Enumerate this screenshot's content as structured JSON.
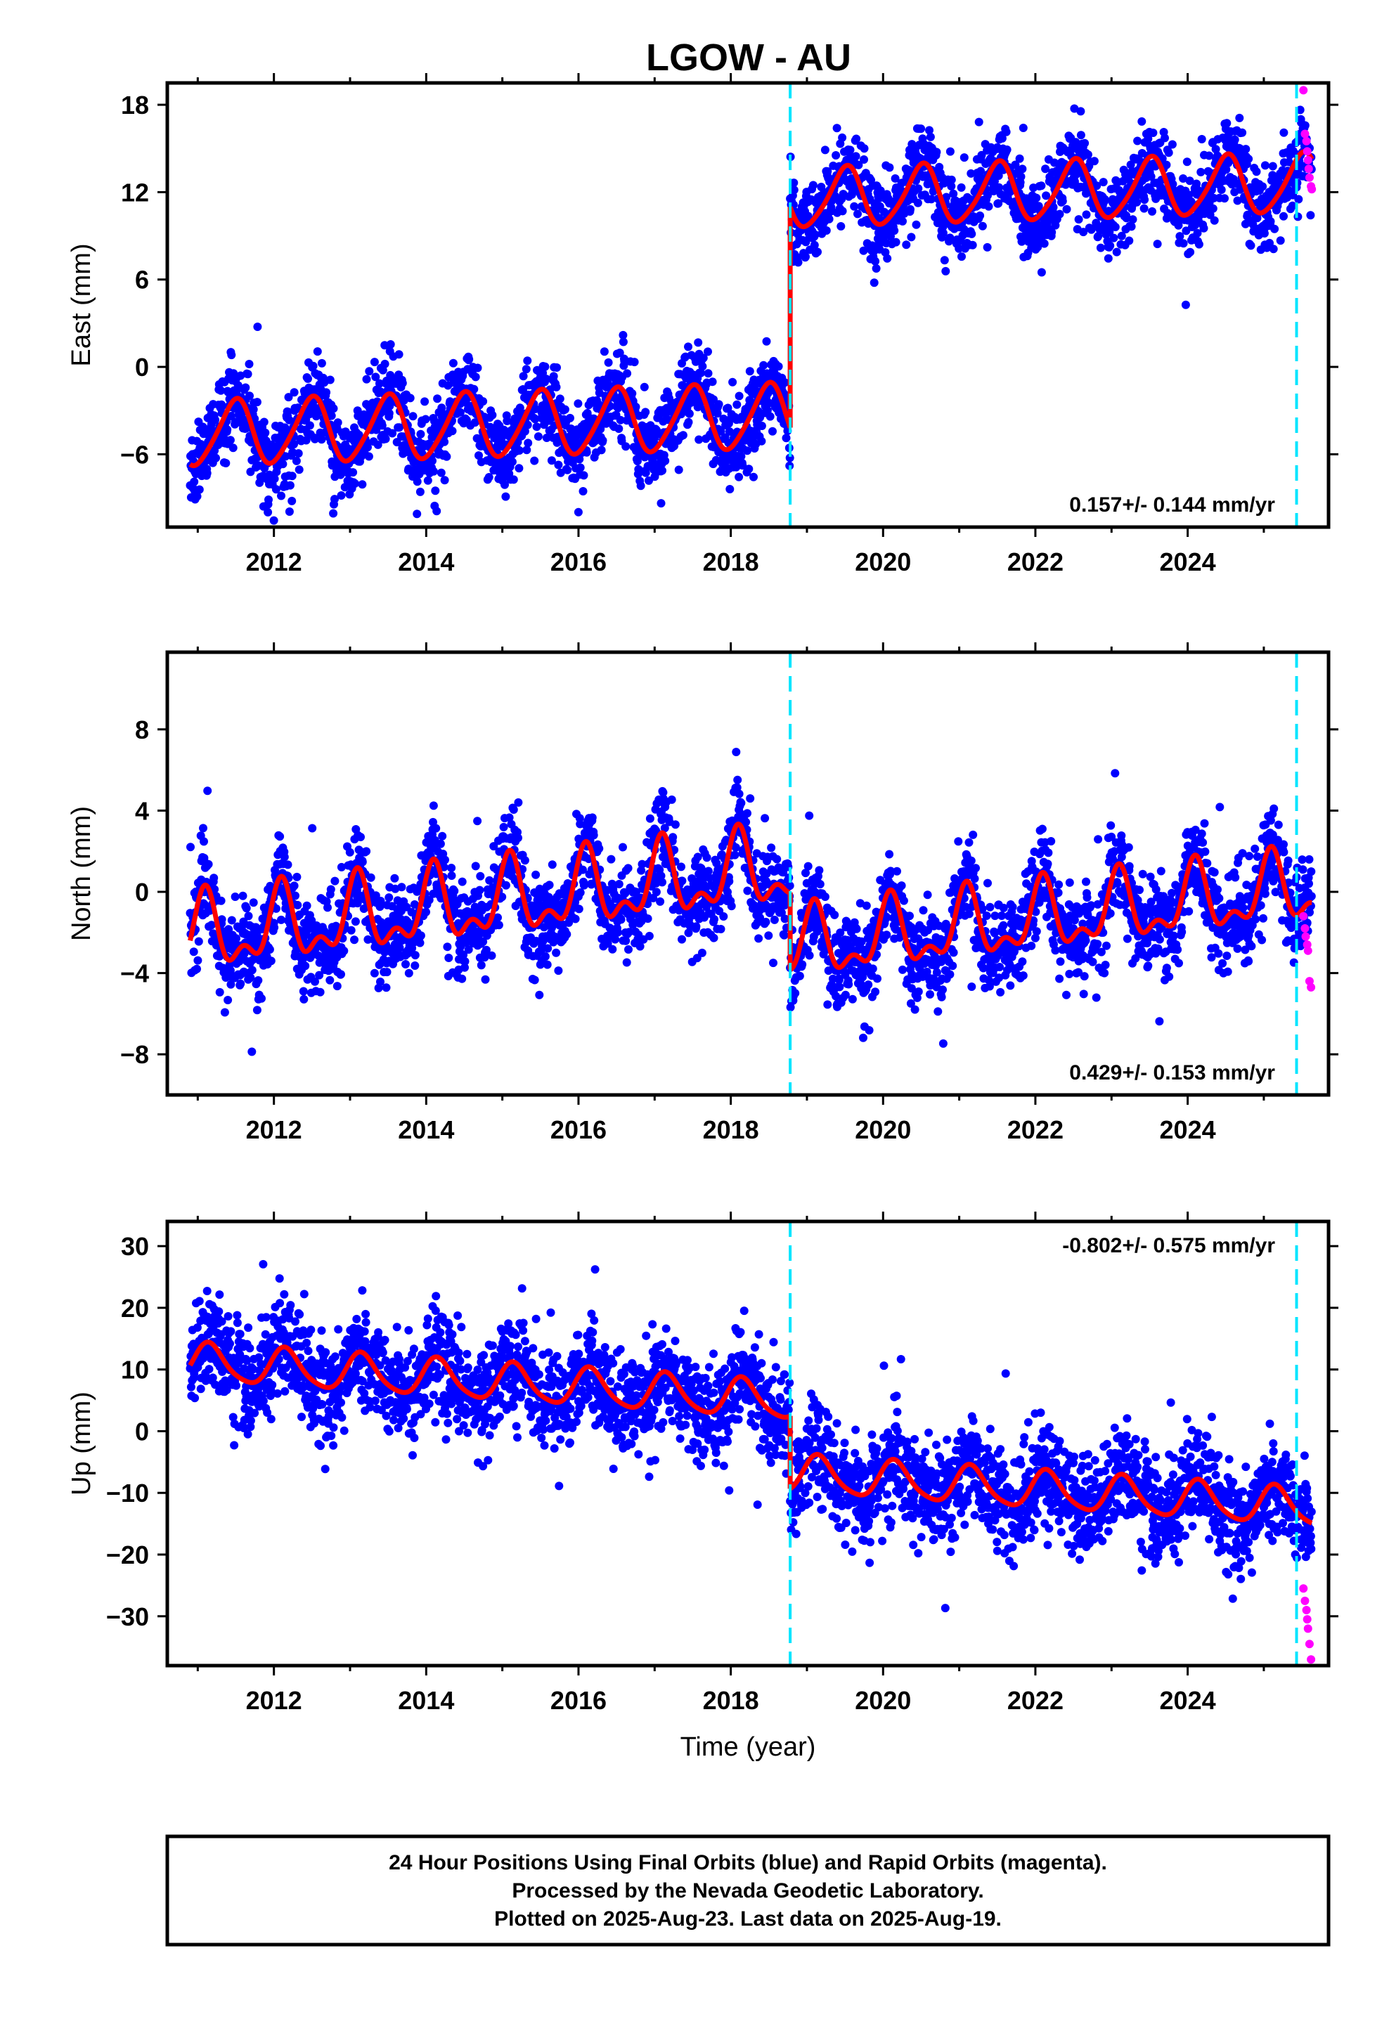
{
  "chart_data": {
    "type": "scatter",
    "title": "LGOW - AU",
    "xlabel": "Time (year)",
    "xlim": [
      2010.6,
      2025.85
    ],
    "x_ticks": [
      "2012",
      "2014",
      "2016",
      "2018",
      "2020",
      "2022",
      "2024"
    ],
    "x_tick_values": [
      2012,
      2014,
      2016,
      "2018",
      2020,
      2022,
      2024
    ],
    "data_start": 2010.9,
    "data_end": 2025.63,
    "series_colors": {
      "final": "#0000ff",
      "rapid": "#ff00ff",
      "model": "#ff0000",
      "offsets": "#00e5ff"
    },
    "offset_lines": [
      2018.78,
      2025.43
    ],
    "panels": [
      {
        "name": "east",
        "ylabel": "East (mm)",
        "ylim": [
          -11,
          19.5
        ],
        "y_ticks": [
          "−6",
          "0",
          "6",
          "12",
          "18"
        ],
        "y_tick_values": [
          -6,
          0,
          6,
          12,
          18
        ],
        "rate": "0.157+/- 0.144 mm/yr",
        "rate_position": "bottom-right",
        "model": {
          "segments": [
            {
              "start": 2010.9,
              "end": 2018.78,
              "intercept": -3.5,
              "slope": 0.157,
              "amp1": 2.2,
              "phase1": -1.5,
              "amp2": 0.3,
              "phase2": 0.5
            },
            {
              "start": 2018.78,
              "end": 2025.63,
              "intercept": 11.4,
              "slope": 0.157,
              "amp1": 2.0,
              "phase1": -1.6,
              "amp2": 0.3,
              "phase2": 0.5
            }
          ],
          "noise": 1.4,
          "outlier_rate": 0.02
        },
        "rapid_points": [
          [
            2025.52,
            19.0
          ],
          [
            2025.54,
            16.0
          ],
          [
            2025.56,
            15.5
          ],
          [
            2025.57,
            14.8
          ],
          [
            2025.58,
            14.2
          ],
          [
            2025.59,
            13.6
          ],
          [
            2025.6,
            13.0
          ],
          [
            2025.62,
            12.4
          ],
          [
            2025.63,
            12.2
          ]
        ]
      },
      {
        "name": "north",
        "ylabel": "North (mm)",
        "ylim": [
          -10,
          11.8
        ],
        "y_ticks": [
          "−8",
          "−4",
          "0",
          "4",
          "8"
        ],
        "y_tick_values": [
          -8,
          -4,
          0,
          4,
          8
        ],
        "rate": "0.429+/- 0.153 mm/yr",
        "rate_position": "bottom-right",
        "model": {
          "segments": [
            {
              "start": 2010.9,
              "end": 2018.78,
              "intercept": 0.8,
              "slope": 0.429,
              "amp1": 1.6,
              "phase1": 1.0,
              "amp2": 0.9,
              "phase2": 0.3
            },
            {
              "start": 2018.78,
              "end": 2025.63,
              "intercept": -3.1,
              "slope": 0.429,
              "amp1": 1.5,
              "phase1": 1.0,
              "amp2": 0.8,
              "phase2": 0.3
            }
          ],
          "noise": 1.1,
          "outlier_rate": 0.02
        },
        "rapid_points": [
          [
            2025.52,
            -1.2
          ],
          [
            2025.54,
            -1.8
          ],
          [
            2025.55,
            -2.2
          ],
          [
            2025.57,
            -2.6
          ],
          [
            2025.58,
            -2.9
          ],
          [
            2025.6,
            -4.4
          ],
          [
            2025.62,
            -4.7
          ]
        ]
      },
      {
        "name": "up",
        "ylabel": "Up (mm)",
        "ylim": [
          -38,
          34
        ],
        "y_ticks": [
          "−30",
          "−20",
          "−10",
          "0",
          "10",
          "20",
          "30"
        ],
        "y_tick_values": [
          -30,
          -20,
          -10,
          0,
          10,
          20,
          30
        ],
        "rate": "-0.802+/- 0.575 mm/yr",
        "rate_position": "top-right",
        "model": {
          "segments": [
            {
              "start": 2010.9,
              "end": 2018.78,
              "intercept": 5.5,
              "slope": -0.802,
              "amp1": 3.0,
              "phase1": 0.6,
              "amp2": 0.5,
              "phase2": 0.2
            },
            {
              "start": 2018.78,
              "end": 2025.63,
              "intercept": -6.3,
              "slope": -0.802,
              "amp1": 3.0,
              "phase1": 0.6,
              "amp2": 0.5,
              "phase2": 0.2
            }
          ],
          "noise": 4.0,
          "outlier_rate": 0.02
        },
        "rapid_points": [
          [
            2025.52,
            -25.5
          ],
          [
            2025.54,
            -27.5
          ],
          [
            2025.56,
            -29.0
          ],
          [
            2025.57,
            -30.5
          ],
          [
            2025.58,
            -32.0
          ],
          [
            2025.6,
            -34.5
          ],
          [
            2025.62,
            -37.0
          ]
        ]
      }
    ]
  },
  "footer": {
    "line1": "24 Hour Positions Using Final Orbits (blue) and Rapid Orbits (magenta).",
    "line2": "Processed by the Nevada Geodetic Laboratory.",
    "line3": "Plotted on 2025-Aug-23. Last data on 2025-Aug-19."
  }
}
